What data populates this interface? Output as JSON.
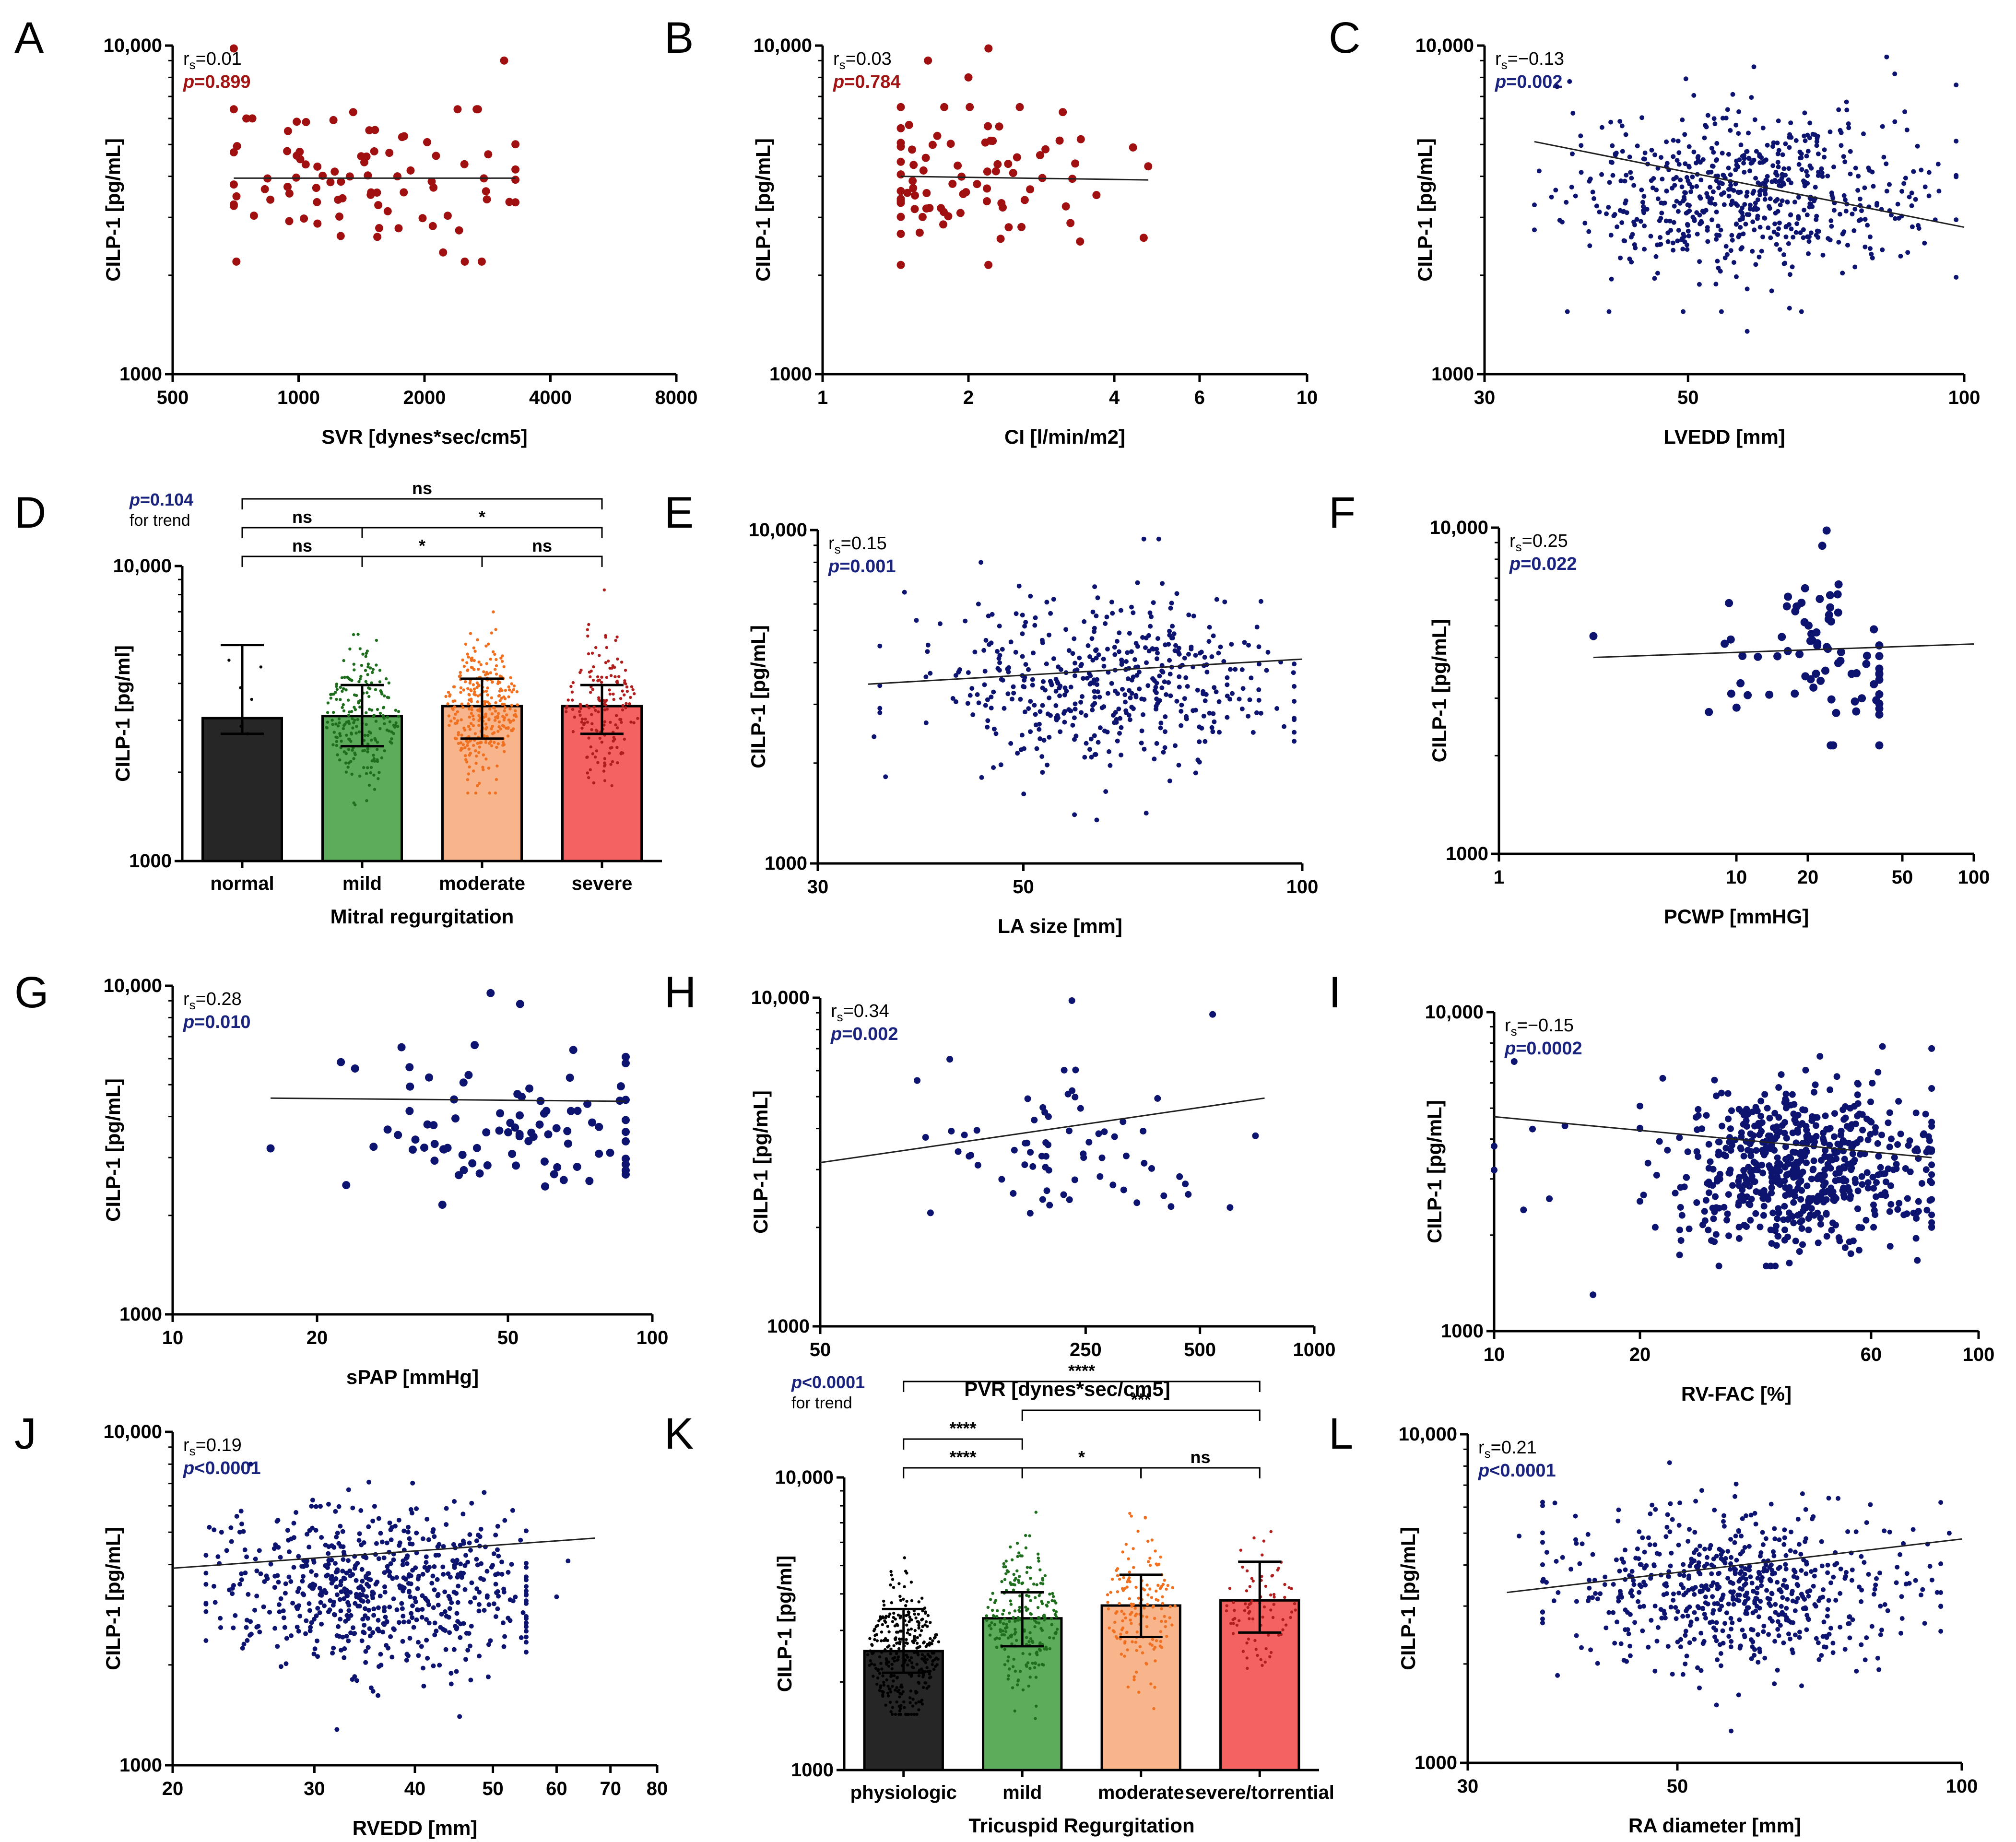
{
  "figure": {
    "description_free": true,
    "colors": {
      "red_points": "#a01010",
      "navy_points": "#0d1470",
      "navy_text": "#1a237e",
      "red_text": "#a31515",
      "bar_normal": "#262626",
      "bar_mild": "#5cac5c",
      "bar_moderate": "#f8b48a",
      "bar_severe": "#f46262",
      "pts_green": "#1e6e1e",
      "pts_orange": "#f07020",
      "pts_red": "#b01e1e",
      "pts_black": "#000000"
    }
  },
  "chart_data": [
    {
      "id": "A",
      "type": "scatter",
      "panel_label": "A",
      "xlabel": "SVR [dynes*sec/cm5]",
      "ylabel": "CILP-1 [pg/mL]",
      "xscale": "log",
      "xlim": [
        500,
        8000
      ],
      "xticks": [
        "500",
        "1000",
        "2000",
        "4000",
        "8000"
      ],
      "yscale": "log",
      "ylim": [
        1000,
        10000
      ],
      "yticks": [
        "1000",
        "10,000"
      ],
      "stat": {
        "rs_prefix": "r",
        "rs_sub": "s",
        "rs_value": "=0.01",
        "p_prefix": "p",
        "p_value": "=0.899",
        "p_color": "red"
      },
      "point_color": "red",
      "point_size": "large",
      "fit": {
        "y_start": 3950,
        "y_end": 3950,
        "x_start": 700,
        "x_end": 3300
      },
      "cloud": {
        "n": 85,
        "x_center": 1400,
        "x_spread": 0.26,
        "x_min": 700,
        "x_max": 3300,
        "y_center": 3900,
        "y_spread": 0.14,
        "y_min": 2200,
        "y_max": 6400
      },
      "extra_points": [
        [
          700,
          9800
        ],
        [
          3100,
          9000
        ],
        [
          750,
          6000
        ],
        [
          2400,
          6400
        ]
      ]
    },
    {
      "id": "B",
      "type": "scatter",
      "panel_label": "B",
      "xlabel": "CI [l/min/m2]",
      "ylabel": "CILP-1 [pg/mL]",
      "xscale": "log",
      "xlim": [
        1,
        10
      ],
      "xticks": [
        "1",
        "2",
        "4",
        "6",
        "10"
      ],
      "yscale": "log",
      "ylim": [
        1000,
        10000
      ],
      "yticks": [
        "1000",
        "10,000"
      ],
      "stat": {
        "rs_prefix": "r",
        "rs_sub": "s",
        "rs_value": "=0.03",
        "p_prefix": "p",
        "p_value": "=0.784",
        "p_color": "red"
      },
      "point_color": "red",
      "point_size": "large",
      "fit": {
        "y_start": 4000,
        "y_end": 3900,
        "x_start": 1.45,
        "x_end": 4.7
      },
      "cloud": {
        "n": 80,
        "x_center": 2.1,
        "x_spread": 0.17,
        "x_min": 1.45,
        "x_max": 4.7,
        "y_center": 3900,
        "y_spread": 0.14,
        "y_min": 2150,
        "y_max": 6500
      },
      "extra_points": [
        [
          2.2,
          9800
        ],
        [
          1.65,
          9000
        ],
        [
          2.0,
          8000
        ],
        [
          4.6,
          2600
        ]
      ]
    },
    {
      "id": "C",
      "type": "scatter",
      "panel_label": "C",
      "xlabel": "LVEDD [mm]",
      "ylabel": "CILP-1 [pg/mL]",
      "xscale": "log",
      "xlim": [
        30,
        100
      ],
      "xticks": [
        "30",
        "50",
        "100"
      ],
      "yscale": "log",
      "ylim": [
        1000,
        10000
      ],
      "yticks": [
        "1000",
        "10,000"
      ],
      "stat": {
        "rs_prefix": "r",
        "rs_sub": "s",
        "rs_value": "=−0.13",
        "p_prefix": "p",
        "p_value": "=0.002",
        "p_color": "navy"
      },
      "point_color": "navy",
      "point_size": "small",
      "fit": {
        "y_start": 5100,
        "y_end": 2800,
        "x_start": 34,
        "x_end": 100
      },
      "cloud": {
        "n": 640,
        "x_center": 57,
        "x_spread": 0.1,
        "x_min": 34,
        "x_max": 98,
        "y_center": 3500,
        "y_spread": 0.13,
        "y_min": 1550,
        "y_max": 9800
      },
      "extra_points": [
        [
          36,
          7500
        ],
        [
          84,
          8200
        ],
        [
          93,
          2950
        ],
        [
          58,
          1350
        ],
        [
          41,
          1550
        ]
      ]
    },
    {
      "id": "D",
      "type": "bar",
      "panel_label": "D",
      "xlabel": "Mitral regurgitation",
      "ylabel": "CILP-1 [pg/ml]",
      "yscale": "log",
      "ylim": [
        1000,
        10000
      ],
      "yticks": [
        "1000",
        "10,000"
      ],
      "categories": [
        "normal",
        "mild",
        "moderate",
        "severe"
      ],
      "values": [
        3050,
        3100,
        3350,
        3350
      ],
      "error_low": [
        2700,
        2450,
        2600,
        2700
      ],
      "error_high": [
        5400,
        3950,
        4150,
        3950
      ],
      "bar_colors": [
        "bar_normal",
        "bar_mild",
        "bar_moderate",
        "bar_severe"
      ],
      "point_colors": [
        "pts_black",
        "pts_green",
        "pts_orange",
        "pts_red"
      ],
      "point_counts": [
        6,
        210,
        300,
        160
      ],
      "point_ranges": [
        [
          2700,
          6500
        ],
        [
          1550,
          9500
        ],
        [
          1700,
          9200
        ],
        [
          1800,
          8300
        ]
      ],
      "trend": {
        "p_prefix": "p",
        "p_value": "=0.104",
        "label": "for trend"
      },
      "brackets": [
        {
          "from": 0,
          "to": 3,
          "level": 3,
          "label": "ns"
        },
        {
          "from": 1,
          "to": 3,
          "level": 2,
          "label": "*"
        },
        {
          "from": 0,
          "to": 1,
          "level": 2,
          "label": "ns"
        },
        {
          "from": 0,
          "to": 1,
          "level": 1,
          "label": "ns"
        },
        {
          "from": 1,
          "to": 2,
          "level": 1,
          "label": "*"
        },
        {
          "from": 2,
          "to": 3,
          "level": 1,
          "label": "ns"
        }
      ]
    },
    {
      "id": "E",
      "type": "scatter",
      "panel_label": "E",
      "xlabel": "LA size [mm]",
      "ylabel": "CILP-1 [pg/mL]",
      "xscale": "log",
      "xlim": [
        30,
        100
      ],
      "xticks": [
        "30",
        "50",
        "100"
      ],
      "yscale": "log",
      "ylim": [
        1000,
        10000
      ],
      "yticks": [
        "1000",
        "10,000"
      ],
      "stat": {
        "rs_prefix": "r",
        "rs_sub": "s",
        "rs_value": "=0.15",
        "p_prefix": "p",
        "p_value": "=0.001",
        "p_color": "navy"
      },
      "point_color": "navy",
      "point_size": "small",
      "fit": {
        "y_start": 3450,
        "y_end": 4100,
        "x_start": 34,
        "x_end": 100
      },
      "cloud": {
        "n": 470,
        "x_center": 62,
        "x_spread": 0.1,
        "x_min": 35,
        "x_max": 98,
        "y_center": 3450,
        "y_spread": 0.12,
        "y_min": 1400,
        "y_max": 9800
      },
      "extra_points": [
        [
          34.5,
          2400
        ],
        [
          35.5,
          1820
        ],
        [
          60,
          1350
        ],
        [
          45,
          8000
        ],
        [
          70,
          9400
        ]
      ]
    },
    {
      "id": "F",
      "type": "scatter",
      "panel_label": "F",
      "xlabel": "PCWP [mmHG]",
      "ylabel": "CILP-1 [pg/mL]",
      "xscale": "log",
      "xlim": [
        1,
        100
      ],
      "xticks": [
        "1",
        "10",
        "20",
        "50",
        "100"
      ],
      "yscale": "log",
      "ylim": [
        1000,
        10000
      ],
      "yticks": [
        "1000",
        "10,000"
      ],
      "stat": {
        "rs_prefix": "r",
        "rs_sub": "s",
        "rs_value": "=0.25",
        "p_prefix": "p",
        "p_value": "=0.022",
        "p_color": "navy"
      },
      "point_color": "navy",
      "point_size": "large",
      "fit": {
        "y_start": 4000,
        "y_end": 4400,
        "x_start": 2.5,
        "x_end": 100
      },
      "cloud": {
        "n": 75,
        "x_center": 20,
        "x_spread": 0.22,
        "x_min": 3.2,
        "x_max": 40,
        "y_center": 3700,
        "y_spread": 0.13,
        "y_min": 2150,
        "y_max": 6700
      },
      "extra_points": [
        [
          2.5,
          4650
        ],
        [
          24,
          9800
        ],
        [
          23,
          8800
        ]
      ]
    },
    {
      "id": "G",
      "type": "scatter",
      "panel_label": "G",
      "xlabel": "sPAP [mmHg]",
      "ylabel": "CILP-1 [pg/mL]",
      "xscale": "log",
      "xlim": [
        10,
        100
      ],
      "xticks": [
        "10",
        "20",
        "50",
        "100"
      ],
      "yscale": "log",
      "ylim": [
        1000,
        10000
      ],
      "yticks": [
        "1000",
        "10,000"
      ],
      "stat": {
        "rs_prefix": "r",
        "rs_sub": "s",
        "rs_value": "=0.28",
        "p_prefix": "p",
        "p_value": "=0.010",
        "p_color": "navy"
      },
      "point_color": "navy",
      "point_size": "large",
      "fit": {
        "y_start": 4550,
        "y_end": 4450,
        "x_start": 16,
        "x_end": 88
      },
      "cloud": {
        "n": 85,
        "x_center": 50,
        "x_spread": 0.15,
        "x_min": 20,
        "x_max": 88,
        "y_center": 3500,
        "y_spread": 0.12,
        "y_min": 2150,
        "y_max": 6600
      },
      "extra_points": [
        [
          16,
          3200
        ],
        [
          46,
          9500
        ],
        [
          53,
          8800
        ],
        [
          24,
          5600
        ],
        [
          30,
          6500
        ]
      ]
    },
    {
      "id": "H",
      "type": "scatter",
      "panel_label": "H",
      "xlabel": "PVR [dynes*sec/cm5]",
      "ylabel": "CILP-1 [pg/mL]",
      "xscale": "log",
      "xlim": [
        50,
        1000
      ],
      "xticks": [
        "50",
        "250",
        "500",
        "1000"
      ],
      "yscale": "log",
      "ylim": [
        1000,
        10000
      ],
      "yticks": [
        "1000",
        "10,000"
      ],
      "stat": {
        "rs_prefix": "r",
        "rs_sub": "s",
        "rs_value": "=0.34",
        "p_prefix": "p",
        "p_value": "=0.002",
        "p_color": "navy"
      },
      "point_color": "navy",
      "point_size": "medium",
      "fit": {
        "y_start": 3150,
        "y_end": 4950,
        "x_start": 50,
        "x_end": 740
      },
      "cloud": {
        "n": 65,
        "x_center": 200,
        "x_spread": 0.17,
        "x_min": 60,
        "x_max": 720,
        "y_center": 3500,
        "y_spread": 0.12,
        "y_min": 2150,
        "y_max": 6500
      },
      "extra_points": [
        [
          230,
          9800
        ],
        [
          540,
          8900
        ],
        [
          90,
          5600
        ],
        [
          600,
          2300
        ],
        [
          700,
          3800
        ]
      ]
    },
    {
      "id": "I",
      "type": "scatter",
      "panel_label": "I",
      "xlabel": "RV-FAC [%]",
      "ylabel": "CILP-1 [pg/mL]",
      "xscale": "log",
      "xlim": [
        10,
        100
      ],
      "xticks": [
        "10",
        "20",
        "60",
        "100"
      ],
      "yscale": "log",
      "ylim": [
        1000,
        10000
      ],
      "yticks": [
        "1000",
        "10,000"
      ],
      "stat": {
        "rs_prefix": "r",
        "rs_sub": "s",
        "rs_value": "=−0.15",
        "p_prefix": "p",
        "p_value": "=0.0002",
        "p_color": "navy"
      },
      "point_color": "navy",
      "point_size": "medium",
      "fit": {
        "y_start": 4700,
        "y_end": 3500,
        "x_start": 10,
        "x_end": 80
      },
      "cloud": {
        "n": 620,
        "x_center": 42,
        "x_spread": 0.13,
        "x_min": 20,
        "x_max": 80,
        "y_center": 3250,
        "y_spread": 0.12,
        "y_min": 1600,
        "y_max": 9800
      },
      "extra_points": [
        [
          10,
          3800
        ],
        [
          10,
          3200
        ],
        [
          11,
          7000
        ],
        [
          12,
          4300
        ],
        [
          14,
          4400
        ],
        [
          16,
          1300
        ],
        [
          11.5,
          2400
        ],
        [
          13,
          2600
        ]
      ]
    },
    {
      "id": "J",
      "type": "scatter",
      "panel_label": "J",
      "xlabel": "RVEDD [mm]",
      "ylabel": "CILP-1 [pg/mL]",
      "xscale": "log",
      "xlim": [
        20,
        80
      ],
      "xticks": [
        "20",
        "30",
        "40",
        "50",
        "60",
        "70",
        "80"
      ],
      "yscale": "log",
      "ylim": [
        1000,
        10000
      ],
      "yticks": [
        "1000",
        "10,000"
      ],
      "stat": {
        "rs_prefix": "r",
        "rs_sub": "s",
        "rs_value": "=0.19",
        "p_prefix": "p",
        "p_value": "<0.0001",
        "p_color": "navy"
      },
      "point_color": "navy",
      "point_size": "small",
      "fit": {
        "y_start": 3900,
        "y_end": 4800,
        "x_start": 20,
        "x_end": 67
      },
      "cloud": {
        "n": 640,
        "x_center": 36,
        "x_spread": 0.1,
        "x_min": 22,
        "x_max": 55,
        "y_center": 3350,
        "y_spread": 0.12,
        "y_min": 1400,
        "y_max": 9800
      },
      "extra_points": [
        [
          62,
          4100
        ],
        [
          23,
          5000
        ],
        [
          32,
          1280
        ],
        [
          25,
          8000
        ],
        [
          60,
          3200
        ]
      ]
    },
    {
      "id": "K",
      "type": "bar",
      "panel_label": "K",
      "xlabel": "Tricuspid Regurgitation",
      "ylabel": "CILP-1 [pg/ml]",
      "yscale": "log",
      "ylim": [
        1000,
        10000
      ],
      "yticks": [
        "1000",
        "10,000"
      ],
      "categories": [
        "physiologic",
        "mild",
        "moderate",
        "severe/torrential"
      ],
      "values": [
        2550,
        3300,
        3650,
        3800
      ],
      "error_low": [
        2150,
        2650,
        2850,
        2950
      ],
      "error_high": [
        3550,
        4050,
        4650,
        5150
      ],
      "bar_colors": [
        "bar_normal",
        "bar_mild",
        "bar_moderate",
        "bar_severe"
      ],
      "point_colors": [
        "pts_black",
        "pts_green",
        "pts_orange",
        "pts_red"
      ],
      "point_counts": [
        330,
        230,
        150,
        80
      ],
      "point_ranges": [
        [
          1550,
          7000
        ],
        [
          1500,
          9000
        ],
        [
          1300,
          9300
        ],
        [
          1900,
          9000
        ]
      ],
      "trend": {
        "p_prefix": "p",
        "p_value": "<0.0001",
        "label": "for trend"
      },
      "brackets": [
        {
          "from": 0,
          "to": 3,
          "level": 4,
          "label": "****"
        },
        {
          "from": 1,
          "to": 3,
          "level": 3,
          "label": "***"
        },
        {
          "from": 0,
          "to": 1,
          "level": 2,
          "label": "****"
        },
        {
          "from": 0,
          "to": 1,
          "level": 1,
          "label": "****"
        },
        {
          "from": 1,
          "to": 2,
          "level": 1,
          "label": "*"
        },
        {
          "from": 2,
          "to": 3,
          "level": 1,
          "label": "ns"
        }
      ]
    },
    {
      "id": "L",
      "type": "scatter",
      "panel_label": "L",
      "xlabel": "RA diameter [mm]",
      "ylabel": "CILP-1 [pg/mL]",
      "xscale": "log",
      "xlim": [
        30,
        100
      ],
      "xticks": [
        "30",
        "50",
        "100"
      ],
      "yscale": "log",
      "ylim": [
        1000,
        10000
      ],
      "yticks": [
        "1000",
        "10,000"
      ],
      "stat": {
        "rs_prefix": "r",
        "rs_sub": "s",
        "rs_value": "=0.21",
        "p_prefix": "p",
        "p_value": "<0.0001",
        "p_color": "navy"
      },
      "point_color": "navy",
      "point_size": "small",
      "fit": {
        "y_start": 3300,
        "y_end": 4800,
        "x_start": 33,
        "x_end": 100
      },
      "cloud": {
        "n": 640,
        "x_center": 58,
        "x_spread": 0.09,
        "x_min": 36,
        "x_max": 95,
        "y_center": 3400,
        "y_spread": 0.12,
        "y_min": 1500,
        "y_max": 9800
      },
      "extra_points": [
        [
          34,
          4900
        ],
        [
          57,
          1250
        ],
        [
          97,
          5000
        ],
        [
          93,
          3600
        ],
        [
          55,
          1500
        ]
      ]
    }
  ]
}
